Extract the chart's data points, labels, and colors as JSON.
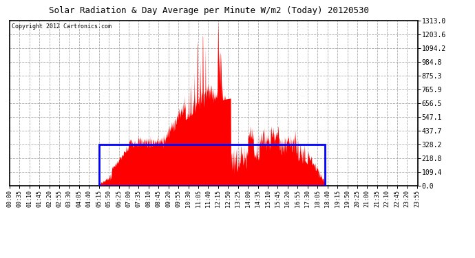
{
  "title": "Solar Radiation & Day Average per Minute W/m2 (Today) 20120530",
  "copyright": "Copyright 2012 Cartronics.com",
  "bg_color": "#ffffff",
  "plot_bg_color": "#ffffff",
  "y_ticks": [
    0.0,
    109.4,
    218.8,
    328.2,
    437.7,
    547.1,
    656.5,
    765.9,
    875.3,
    984.8,
    1094.2,
    1203.6,
    1313.0
  ],
  "ymax": 1313.0,
  "ymin": 0.0,
  "day_average": 328.2,
  "bar_color": "#ff0000",
  "avg_box_color": "#0000ff",
  "grid_color": "#aaaaaa",
  "num_minutes": 1440,
  "sunrise_minute": 315,
  "sunset_minute": 1110,
  "tick_interval": 35,
  "tick_labels": [
    "00:00",
    "00:35",
    "01:10",
    "01:45",
    "02:20",
    "02:55",
    "03:30",
    "04:05",
    "04:40",
    "05:15",
    "05:50",
    "06:25",
    "07:00",
    "07:35",
    "08:10",
    "08:45",
    "09:20",
    "09:55",
    "10:30",
    "11:05",
    "11:40",
    "12:15",
    "12:50",
    "13:25",
    "14:00",
    "14:35",
    "15:10",
    "15:45",
    "16:20",
    "16:55",
    "17:30",
    "18:05",
    "18:40",
    "19:15",
    "19:50",
    "20:25",
    "21:00",
    "21:35",
    "22:10",
    "22:45",
    "23:20",
    "23:55"
  ]
}
